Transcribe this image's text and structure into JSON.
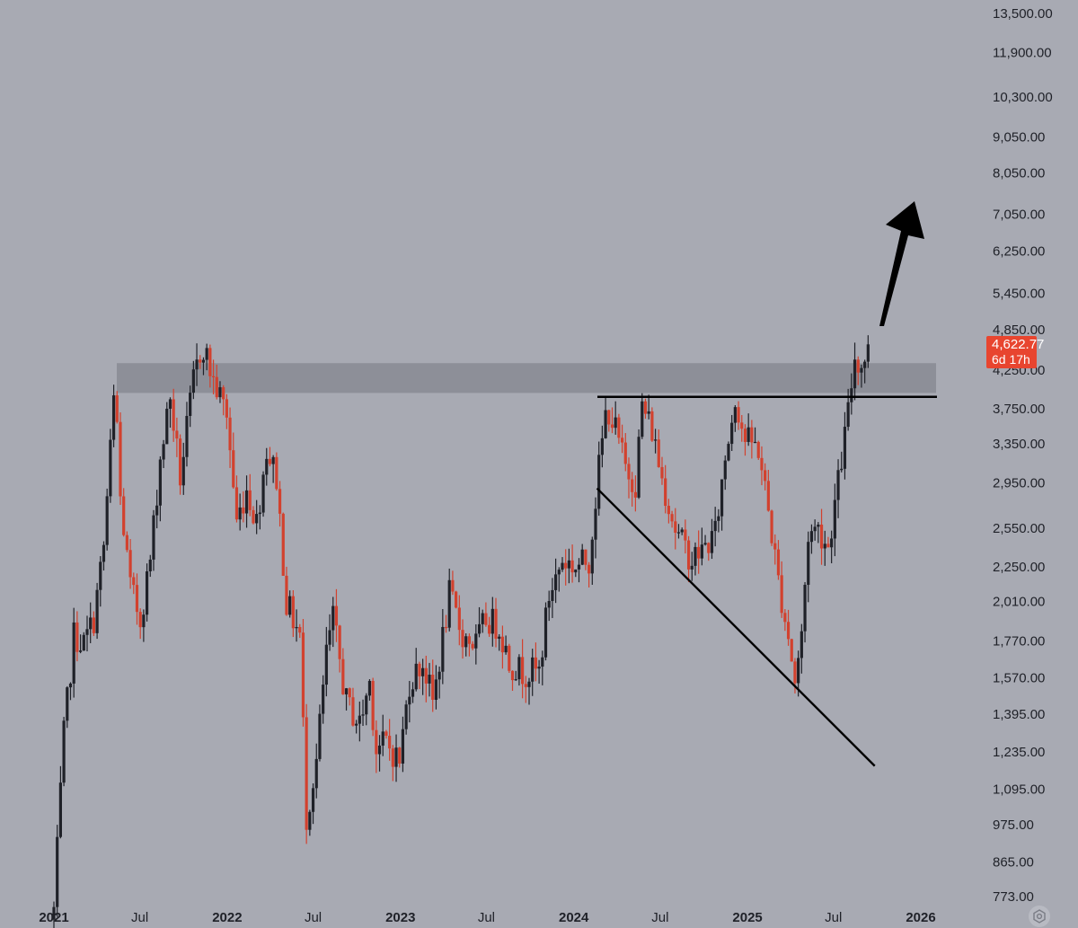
{
  "chart_data": {
    "type": "candlestick",
    "scale": "log",
    "grid": false,
    "ylim": [
      773,
      13500
    ],
    "y_ticks": [
      "13,500.00",
      "11,900.00",
      "10,300.00",
      "9,050.00",
      "8,050.00",
      "7,050.00",
      "6,250.00",
      "5,450.00",
      "4,850.00",
      "4,250.00",
      "3,750.00",
      "3,350.00",
      "2,950.00",
      "2,550.00",
      "2,250.00",
      "2,010.00",
      "1,770.00",
      "1,570.00",
      "1,395.00",
      "1,235.00",
      "1,095.00",
      "975.00",
      "865.00",
      "773.00"
    ],
    "x_ticks": [
      {
        "label": "2021",
        "date": "2021-01-01",
        "year": true
      },
      {
        "label": "Jul",
        "date": "2021-07-01",
        "year": false
      },
      {
        "label": "2022",
        "date": "2022-01-01",
        "year": true
      },
      {
        "label": "Jul",
        "date": "2022-07-01",
        "year": false
      },
      {
        "label": "2023",
        "date": "2023-01-01",
        "year": true
      },
      {
        "label": "Jul",
        "date": "2023-07-01",
        "year": false
      },
      {
        "label": "2024",
        "date": "2024-01-01",
        "year": true
      },
      {
        "label": "Jul",
        "date": "2024-07-01",
        "year": false
      },
      {
        "label": "2025",
        "date": "2025-01-01",
        "year": true
      },
      {
        "label": "Jul",
        "date": "2025-07-01",
        "year": false
      },
      {
        "label": "2026",
        "date": "2026-01-01",
        "year": true
      }
    ],
    "price_path": [
      [
        "2021-01-01",
        740
      ],
      [
        "2021-01-22",
        1300
      ],
      [
        "2021-02-12",
        1800
      ],
      [
        "2021-03-05",
        1750
      ],
      [
        "2021-03-26",
        1900
      ],
      [
        "2021-04-16",
        2400
      ],
      [
        "2021-05-10",
        4100
      ],
      [
        "2021-05-21",
        2800
      ],
      [
        "2021-06-11",
        2100
      ],
      [
        "2021-07-02",
        1900
      ],
      [
        "2021-07-23",
        2300
      ],
      [
        "2021-08-13",
        3200
      ],
      [
        "2021-09-03",
        3900
      ],
      [
        "2021-09-24",
        3000
      ],
      [
        "2021-10-22",
        4100
      ],
      [
        "2021-11-10",
        4650
      ],
      [
        "2021-12-03",
        4100
      ],
      [
        "2021-12-31",
        3700
      ],
      [
        "2022-01-21",
        2600
      ],
      [
        "2022-02-11",
        2900
      ],
      [
        "2022-03-04",
        2600
      ],
      [
        "2022-03-25",
        3300
      ],
      [
        "2022-04-15",
        3000
      ],
      [
        "2022-05-06",
        2000
      ],
      [
        "2022-06-03",
        1800
      ],
      [
        "2022-06-17",
        1000
      ],
      [
        "2022-07-08",
        1200
      ],
      [
        "2022-07-29",
        1700
      ],
      [
        "2022-08-12",
        1900
      ],
      [
        "2022-09-09",
        1450
      ],
      [
        "2022-10-07",
        1350
      ],
      [
        "2022-10-28",
        1550
      ],
      [
        "2022-11-11",
        1250
      ],
      [
        "2022-12-02",
        1270
      ],
      [
        "2022-12-30",
        1200
      ],
      [
        "2023-01-20",
        1550
      ],
      [
        "2023-02-17",
        1650
      ],
      [
        "2023-03-10",
        1450
      ],
      [
        "2023-04-14",
        2050
      ],
      [
        "2023-05-12",
        1800
      ],
      [
        "2023-06-09",
        1750
      ],
      [
        "2023-06-30",
        1900
      ],
      [
        "2023-07-28",
        1850
      ],
      [
        "2023-08-18",
        1650
      ],
      [
        "2023-09-15",
        1600
      ],
      [
        "2023-10-20",
        1600
      ],
      [
        "2023-11-10",
        2050
      ],
      [
        "2023-12-08",
        2300
      ],
      [
        "2024-01-05",
        2250
      ],
      [
        "2024-02-02",
        2300
      ],
      [
        "2024-02-23",
        3100
      ],
      [
        "2024-03-11",
        3800
      ],
      [
        "2024-03-29",
        3500
      ],
      [
        "2024-04-19",
        3100
      ],
      [
        "2024-05-10",
        2950
      ],
      [
        "2024-05-24",
        3800
      ],
      [
        "2024-06-14",
        3500
      ],
      [
        "2024-07-05",
        3000
      ],
      [
        "2024-08-05",
        2500
      ],
      [
        "2024-09-06",
        2300
      ],
      [
        "2024-10-04",
        2400
      ],
      [
        "2024-10-25",
        2500
      ],
      [
        "2024-11-15",
        3200
      ],
      [
        "2024-12-06",
        3900
      ],
      [
        "2024-12-27",
        3400
      ],
      [
        "2025-01-24",
        3300
      ],
      [
        "2025-02-14",
        2700
      ],
      [
        "2025-03-07",
        2150
      ],
      [
        "2025-03-28",
        1800
      ],
      [
        "2025-04-11",
        1550
      ],
      [
        "2025-04-25",
        1800
      ],
      [
        "2025-05-09",
        2500
      ],
      [
        "2025-05-30",
        2550
      ],
      [
        "2025-06-20",
        2400
      ],
      [
        "2025-07-11",
        2950
      ],
      [
        "2025-08-01",
        3700
      ],
      [
        "2025-08-15",
        4450
      ],
      [
        "2025-08-29",
        4300
      ],
      [
        "2025-09-12",
        4622.77
      ]
    ],
    "annotations": {
      "resistance_zone": {
        "from": 3950,
        "to": 4350
      },
      "neckline": {
        "from_date": "2024-03-11",
        "to_date": "2025-10-31",
        "price": 3900
      },
      "trendline": {
        "from_date": "2024-02-19",
        "from_price": 2900,
        "to_date": "2025-09-26",
        "to_price": 1180
      },
      "arrow": {
        "from_date": "2025-09-12",
        "from_price": 5100,
        "to_date": "2025-10-10",
        "to_price": 7300
      }
    },
    "last_price": {
      "value": "4,622.77",
      "countdown": "6d 17h"
    },
    "colors": {
      "up": "#1f2128",
      "down": "#d2412e",
      "background": "#a8aab3",
      "zone": "#8d8f98",
      "badge": "#e8452f"
    }
  },
  "toolbar": {
    "settings_icon": "settings-icon"
  }
}
